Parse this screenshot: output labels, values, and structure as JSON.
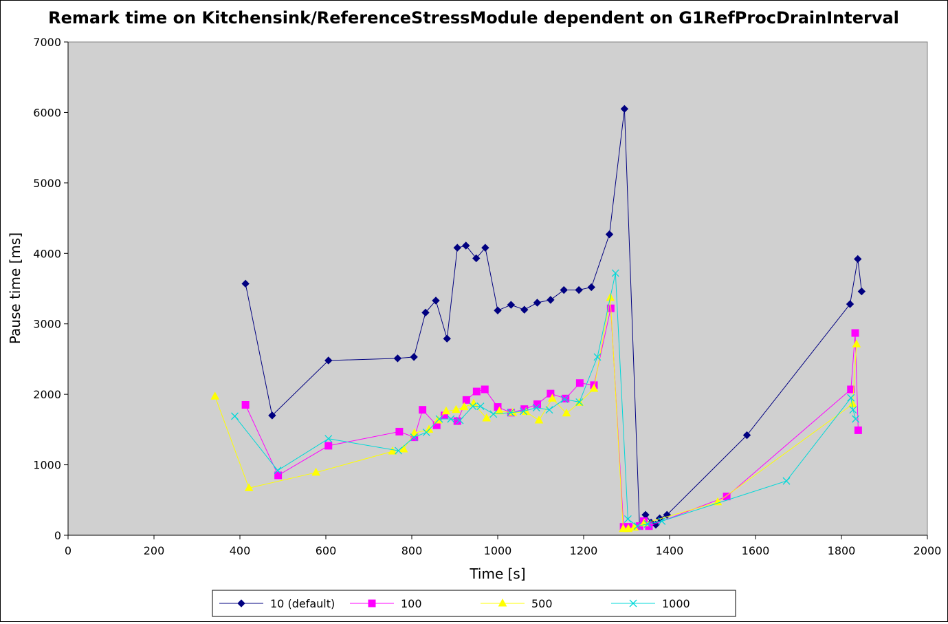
{
  "chart_data": {
    "type": "line",
    "title": "Remark time on Kitchensink/ReferenceStressModule dependent on G1RefProcDrainInterval",
    "xlabel": "Time [s]",
    "ylabel": "Pause time [ms]",
    "xlim": [
      0,
      2000
    ],
    "ylim": [
      0,
      7000
    ],
    "xticks": [
      "0",
      "200",
      "400",
      "600",
      "800",
      "1000",
      "1200",
      "1400",
      "1600",
      "1800",
      "2000"
    ],
    "yticks": [
      "0",
      "1000",
      "2000",
      "3000",
      "4000",
      "5000",
      "6000",
      "7000"
    ],
    "plot_background": "#d0d0d0",
    "grid": false,
    "legend_position": "bottom",
    "series": [
      {
        "name": "10 (default)",
        "color": "#000080",
        "marker": "diamond",
        "x": [
          413,
          475,
          606,
          767,
          805,
          832,
          856,
          882,
          906,
          926,
          950,
          971,
          1000,
          1031,
          1062,
          1092,
          1123,
          1154,
          1189,
          1218,
          1260,
          1295,
          1330,
          1344,
          1357,
          1368,
          1377,
          1394,
          1580,
          1820,
          1838,
          1847
        ],
        "y": [
          3570,
          1700,
          2480,
          2510,
          2530,
          3160,
          3330,
          2790,
          4080,
          4110,
          3930,
          4080,
          3190,
          3270,
          3200,
          3300,
          3340,
          3480,
          3480,
          3520,
          4270,
          6050,
          130,
          290,
          180,
          150,
          240,
          290,
          1420,
          3280,
          3920,
          3460
        ]
      },
      {
        "name": "100",
        "color": "#ff00ff",
        "marker": "square",
        "x": [
          413,
          489,
          606,
          771,
          806,
          825,
          858,
          876,
          906,
          927,
          951,
          970,
          1000,
          1031,
          1062,
          1092,
          1123,
          1158,
          1191,
          1224,
          1263,
          1293,
          1305,
          1330,
          1340,
          1352,
          1533,
          1822,
          1832,
          1839
        ],
        "y": [
          1850,
          850,
          1270,
          1470,
          1390,
          1780,
          1560,
          1700,
          1620,
          1920,
          2040,
          2070,
          1820,
          1740,
          1790,
          1860,
          2010,
          1940,
          2160,
          2130,
          3220,
          120,
          120,
          130,
          200,
          130,
          550,
          2070,
          2870,
          1490
        ]
      },
      {
        "name": "500",
        "color": "#ffff00",
        "marker": "triangle",
        "x": [
          342,
          421,
          577,
          755,
          781,
          806,
          840,
          861,
          880,
          903,
          922,
          944,
          974,
          1004,
          1035,
          1066,
          1096,
          1127,
          1160,
          1190,
          1224,
          1262,
          1292,
          1304,
          1318,
          1341,
          1512,
          1826,
          1835
        ],
        "y": [
          1970,
          670,
          890,
          1190,
          1220,
          1450,
          1500,
          1630,
          1760,
          1780,
          1820,
          1870,
          1660,
          1760,
          1740,
          1750,
          1630,
          1940,
          1730,
          1880,
          2080,
          3370,
          90,
          90,
          110,
          170,
          470,
          1860,
          2710
        ]
      },
      {
        "name": "1000",
        "color": "#00d8d8",
        "marker": "x",
        "x": [
          388,
          488,
          606,
          769,
          805,
          834,
          864,
          891,
          912,
          942,
          960,
          990,
          1030,
          1060,
          1090,
          1120,
          1155,
          1190,
          1232,
          1274,
          1303,
          1325,
          1349,
          1382,
          1672,
          1822,
          1827,
          1833
        ],
        "y": [
          1690,
          920,
          1370,
          1200,
          1390,
          1460,
          1650,
          1650,
          1630,
          1830,
          1830,
          1720,
          1740,
          1760,
          1810,
          1780,
          1930,
          1890,
          2530,
          3720,
          230,
          130,
          160,
          200,
          770,
          1950,
          1780,
          1650
        ]
      }
    ]
  }
}
